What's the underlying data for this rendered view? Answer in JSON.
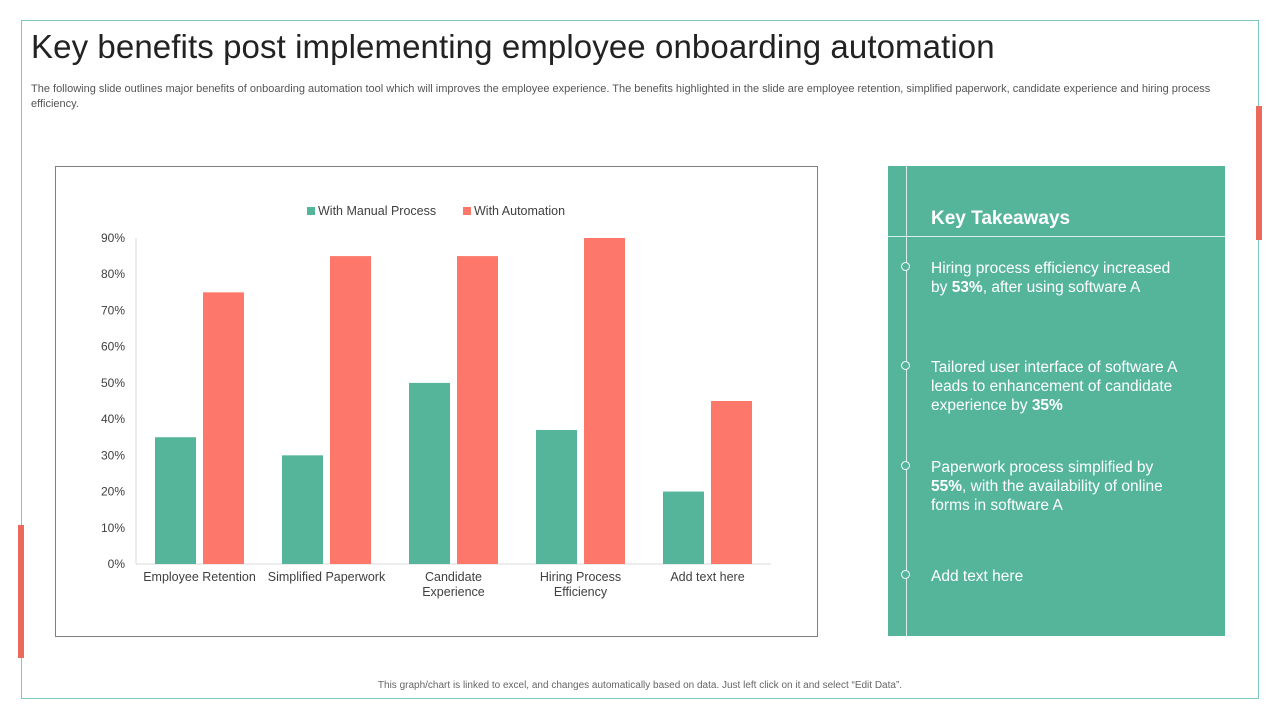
{
  "title": "Key benefits post implementing employee onboarding automation",
  "subtitle": "The following slide outlines major benefits of onboarding automation tool which will improves the employee experience. The benefits highlighted in the slide are employee retention, simplified paperwork, candidate experience and hiring process efficiency.",
  "footer": "This graph/chart is linked to excel, and changes automatically based on data. Just left click on it and select “Edit Data”.",
  "colors": {
    "manual": "#55b59b",
    "automation": "#fd776a",
    "panel": "#55b59b",
    "accent": "#ea6b5d"
  },
  "chart_data": {
    "type": "bar",
    "categories": [
      [
        "Employee Retention"
      ],
      [
        "Simplified Paperwork"
      ],
      [
        "Candidate",
        "Experience"
      ],
      [
        "Hiring Process",
        "Efficiency"
      ],
      [
        "Add text here"
      ]
    ],
    "series": [
      {
        "name": "With Manual Process",
        "values": [
          35,
          30,
          50,
          37,
          20
        ]
      },
      {
        "name": "With Automation",
        "values": [
          75,
          85,
          85,
          90,
          45
        ]
      }
    ],
    "ylim": [
      0,
      90
    ],
    "yticks": [
      "0%",
      "10%",
      "20%",
      "30%",
      "40%",
      "50%",
      "60%",
      "70%",
      "80%",
      "90%"
    ],
    "legend": "top",
    "grid": false
  },
  "takeaways": {
    "title": "Key Takeaways",
    "items": [
      {
        "before": "Hiring process efficiency increased by ",
        "bold": "53%",
        "after": ", after using software A"
      },
      {
        "before": "Tailored user interface of software A  leads to enhancement  of candidate experience by ",
        "bold": "35%",
        "after": ""
      },
      {
        "before": "Paperwork process simplified by ",
        "bold": "55%",
        "after": ", with the availability of online forms in software A"
      },
      {
        "before": "Add text here",
        "bold": "",
        "after": ""
      }
    ]
  }
}
